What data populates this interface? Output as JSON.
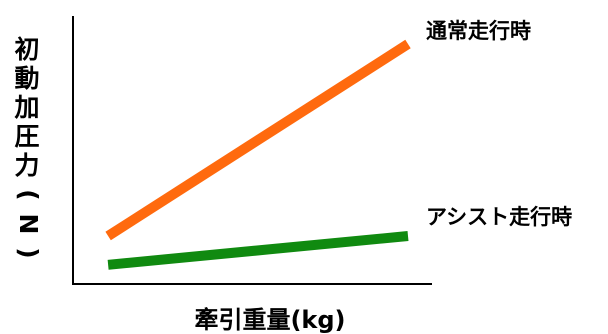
{
  "chart_data": {
    "type": "line",
    "title": "",
    "xlabel": "牽引重量(kg)",
    "ylabel": "初動加圧力(N)",
    "xlim": [
      0,
      1
    ],
    "ylim": [
      0,
      1
    ],
    "grid": false,
    "legend": "direct-labels-right",
    "series": [
      {
        "name": "通常走行時",
        "color": "#ff6a0e",
        "x": [
          0.16,
          1.0
        ],
        "y": [
          0.2,
          1.0
        ]
      },
      {
        "name": "アシスト走行時",
        "color": "#108a10",
        "x": [
          0.16,
          1.0
        ],
        "y": [
          0.08,
          0.2
        ]
      }
    ]
  }
}
